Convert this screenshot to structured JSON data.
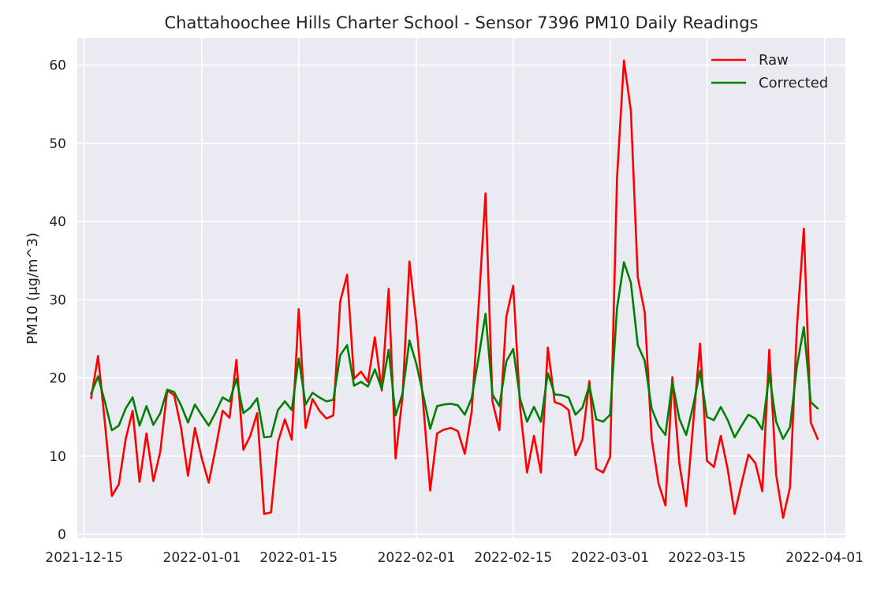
{
  "chart_data": {
    "type": "line",
    "title": "Chattahoochee Hills Charter School - Sensor 7396 PM10 Daily Readings",
    "xlabel": "",
    "ylabel": "PM10 (μg/m^3)",
    "ylim": [
      -0.5,
      63.5
    ],
    "yticks": [
      0,
      10,
      20,
      30,
      40,
      50,
      60
    ],
    "xlim": [
      "2021-12-14",
      "2022-04-04"
    ],
    "xticks": [
      "2021-12-15",
      "2022-01-01",
      "2022-01-15",
      "2022-02-01",
      "2022-02-15",
      "2022-03-01",
      "2022-03-15",
      "2022-04-01"
    ],
    "grid": true,
    "legend_position": "top-right",
    "x_start": "2021-12-16",
    "series": [
      {
        "name": "Raw",
        "color": "#ff0000",
        "values": [
          17.4,
          22.8,
          14.2,
          4.9,
          6.4,
          12.2,
          15.8,
          6.7,
          12.9,
          6.8,
          10.6,
          18.4,
          17.8,
          13.6,
          7.5,
          13.6,
          9.7,
          6.6,
          11.0,
          15.8,
          14.9,
          22.3,
          10.8,
          12.6,
          15.5,
          2.6,
          2.8,
          11.8,
          14.7,
          12.1,
          28.8,
          13.6,
          17.3,
          15.8,
          14.8,
          15.2,
          29.8,
          33.2,
          19.9,
          20.8,
          19.5,
          25.2,
          18.4,
          31.4,
          9.7,
          17.6,
          34.9,
          27.0,
          16.6,
          5.6,
          12.9,
          13.4,
          13.6,
          13.2,
          10.3,
          15.7,
          29.2,
          43.6,
          17.0,
          13.3,
          27.8,
          31.8,
          16.2,
          7.9,
          12.6,
          7.9,
          23.9,
          16.9,
          16.6,
          15.9,
          10.1,
          12.1,
          19.6,
          8.4,
          7.9,
          9.9,
          45.5,
          60.6,
          54.2,
          32.9,
          28.4,
          12.3,
          6.5,
          3.7,
          20.1,
          9.1,
          3.6,
          14.1,
          24.4,
          9.4,
          8.6,
          12.6,
          8.3,
          2.6,
          6.5,
          10.2,
          9.1,
          5.5,
          23.6,
          7.6,
          2.1,
          6.0,
          26.5,
          39.1,
          14.3,
          12.2
        ]
      },
      {
        "name": "Corrected",
        "color": "#008000",
        "values": [
          18.0,
          20.2,
          16.9,
          13.3,
          13.9,
          16.1,
          17.5,
          13.9,
          16.4,
          14.0,
          15.5,
          18.5,
          18.2,
          16.5,
          14.3,
          16.6,
          15.2,
          13.9,
          15.6,
          17.5,
          17.0,
          19.9,
          15.5,
          16.2,
          17.4,
          12.4,
          12.5,
          15.9,
          17.0,
          15.9,
          22.5,
          16.6,
          18.1,
          17.5,
          17.0,
          17.2,
          22.9,
          24.2,
          19.0,
          19.5,
          18.9,
          21.1,
          18.6,
          23.6,
          15.2,
          18.0,
          24.8,
          21.8,
          17.8,
          13.5,
          16.4,
          16.6,
          16.7,
          16.5,
          15.3,
          17.4,
          22.6,
          28.2,
          17.9,
          16.4,
          22.1,
          23.7,
          17.3,
          14.4,
          16.3,
          14.4,
          20.6,
          17.9,
          17.8,
          17.5,
          15.3,
          16.2,
          19.0,
          14.7,
          14.4,
          15.3,
          28.9,
          34.8,
          32.2,
          24.2,
          22.2,
          16.1,
          13.9,
          12.7,
          19.5,
          14.8,
          12.7,
          16.4,
          20.9,
          15.0,
          14.6,
          16.3,
          14.6,
          12.4,
          13.9,
          15.3,
          14.8,
          13.4,
          20.5,
          14.4,
          12.2,
          13.7,
          21.5,
          26.5,
          16.9,
          16.1
        ]
      }
    ]
  }
}
